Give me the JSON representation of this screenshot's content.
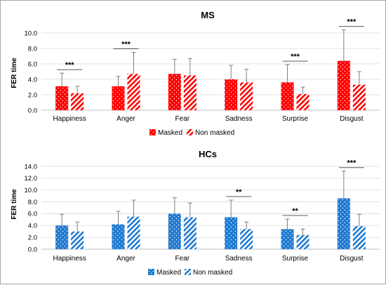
{
  "chart_data": [
    {
      "type": "bar",
      "title": "MS",
      "ylabel": "FER time",
      "ylim": [
        0,
        10
      ],
      "yticks": [
        "0.0",
        "2.0",
        "4.0",
        "6.0",
        "8.0",
        "10.0"
      ],
      "categories": [
        "Happiness",
        "Anger",
        "Fear",
        "Sadness",
        "Surprise",
        "Disgust"
      ],
      "series": [
        {
          "name": "Masked",
          "values": [
            3.1,
            3.1,
            4.7,
            4.0,
            3.6,
            6.4
          ],
          "error": [
            1.7,
            1.3,
            1.9,
            1.8,
            2.3,
            4.0
          ]
        },
        {
          "name": "Non masked",
          "values": [
            2.2,
            4.7,
            4.5,
            3.6,
            2.1,
            3.3
          ],
          "error": [
            0.9,
            2.8,
            2.2,
            1.7,
            0.9,
            1.7
          ]
        }
      ],
      "significance": [
        "***",
        "***",
        "",
        "",
        "***",
        "***"
      ],
      "color": "#ff0000"
    },
    {
      "type": "bar",
      "title": "HCs",
      "ylabel": "FER time",
      "ylim": [
        0,
        14
      ],
      "yticks": [
        "0.0",
        "2.0",
        "4.0",
        "6.0",
        "8.0",
        "10.0",
        "12.0",
        "14.0"
      ],
      "categories": [
        "Happiness",
        "Anger",
        "Fear",
        "Sadness",
        "Surprise",
        "Disgust"
      ],
      "series": [
        {
          "name": "Masked",
          "values": [
            4.0,
            4.2,
            6.0,
            5.4,
            3.4,
            8.6
          ],
          "error": [
            1.9,
            2.2,
            2.7,
            2.9,
            1.7,
            4.6
          ]
        },
        {
          "name": "Non masked",
          "values": [
            3.0,
            5.5,
            5.4,
            3.4,
            2.4,
            3.9
          ],
          "error": [
            1.6,
            2.8,
            2.4,
            1.2,
            1.0,
            2.0
          ]
        }
      ],
      "significance": [
        "",
        "",
        "",
        "**",
        "**",
        "***"
      ],
      "color": "#1f7ad0"
    }
  ]
}
